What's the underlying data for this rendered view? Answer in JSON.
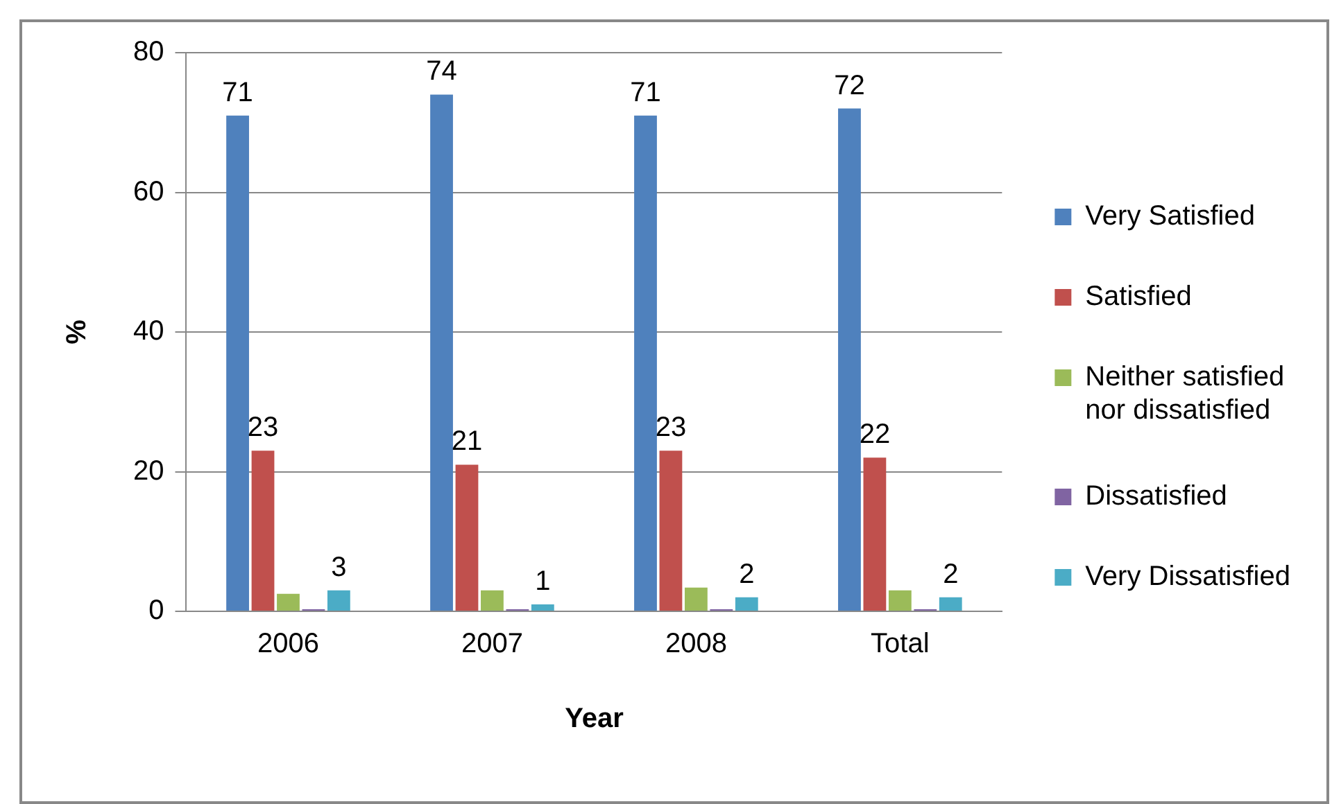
{
  "chart_data": {
    "type": "bar",
    "xlabel": "Year",
    "ylabel": "%",
    "categories": [
      "2006",
      "2007",
      "2008",
      "Total"
    ],
    "series": [
      {
        "name": "Very Satisfied",
        "color": "#4f81bd",
        "values": [
          71,
          74,
          71,
          72
        ],
        "value_labels": [
          "71",
          "74",
          "71",
          "72"
        ]
      },
      {
        "name": "Satisfied",
        "color": "#c0504d",
        "values": [
          23,
          21,
          23,
          22
        ],
        "value_labels": [
          "23",
          "21",
          "23",
          "22"
        ]
      },
      {
        "name": "Neither satisfied nor dissatisfied",
        "color": "#9bbb59",
        "values": [
          2.5,
          3,
          3.4,
          3
        ]
      },
      {
        "name": "Dissatisfied",
        "color": "#8064a2",
        "values": [
          0.3,
          0.3,
          0.3,
          0.3
        ]
      },
      {
        "name": "Very Dissatisfied",
        "color": "#4bacc6",
        "values": [
          3,
          1,
          2,
          2
        ],
        "value_labels": [
          "3",
          "1",
          "2",
          "2"
        ]
      }
    ],
    "ylim": [
      0,
      80
    ],
    "yticks": [
      0,
      20,
      40,
      60,
      80
    ],
    "grid": "y",
    "legend": "right"
  }
}
